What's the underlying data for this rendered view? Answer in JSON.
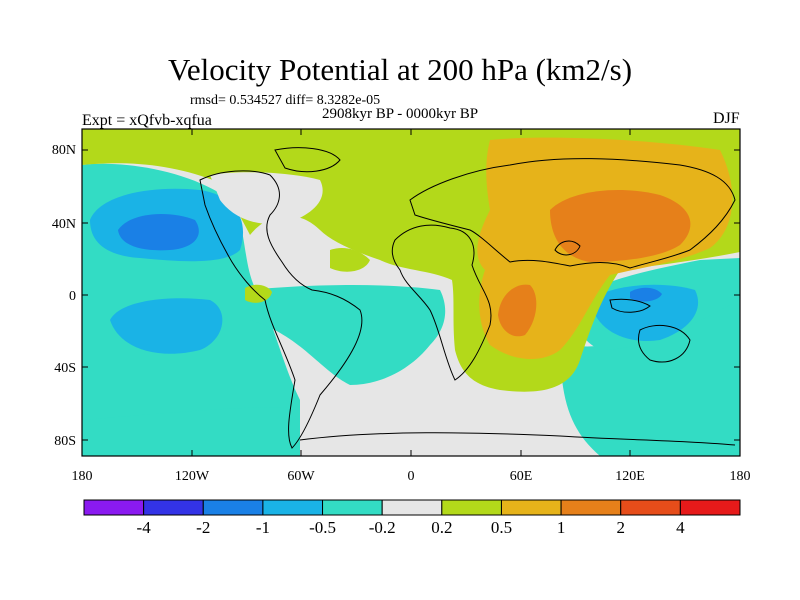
{
  "title": "Velocity Potential at 200 hPa (km2/s)",
  "stats_line": "rmsd= 0.534527 diff= 8.3282e-05",
  "period_line": "2908kyr BP - 0000kyr BP",
  "experiment_label": "Expt = xQfvb-xqfua",
  "season_label": "DJF",
  "lat_ticks": [
    "80N",
    "40N",
    "0",
    "40S",
    "80S"
  ],
  "lon_ticks": [
    "180",
    "120W",
    "60W",
    "0",
    "60E",
    "120E",
    "180"
  ],
  "colorbar": {
    "colors": [
      "#8a1af0",
      "#3333e6",
      "#1a80e6",
      "#1ab3e6",
      "#33dcc4",
      "#e6e6e6",
      "#b3d91a",
      "#e6b31a",
      "#e6801a",
      "#e64d1a",
      "#e61a1a"
    ],
    "labels": [
      "-4",
      "-2",
      "-1",
      "-0.5",
      "-0.2",
      "0.2",
      "0.5",
      "1",
      "2",
      "4"
    ]
  }
}
